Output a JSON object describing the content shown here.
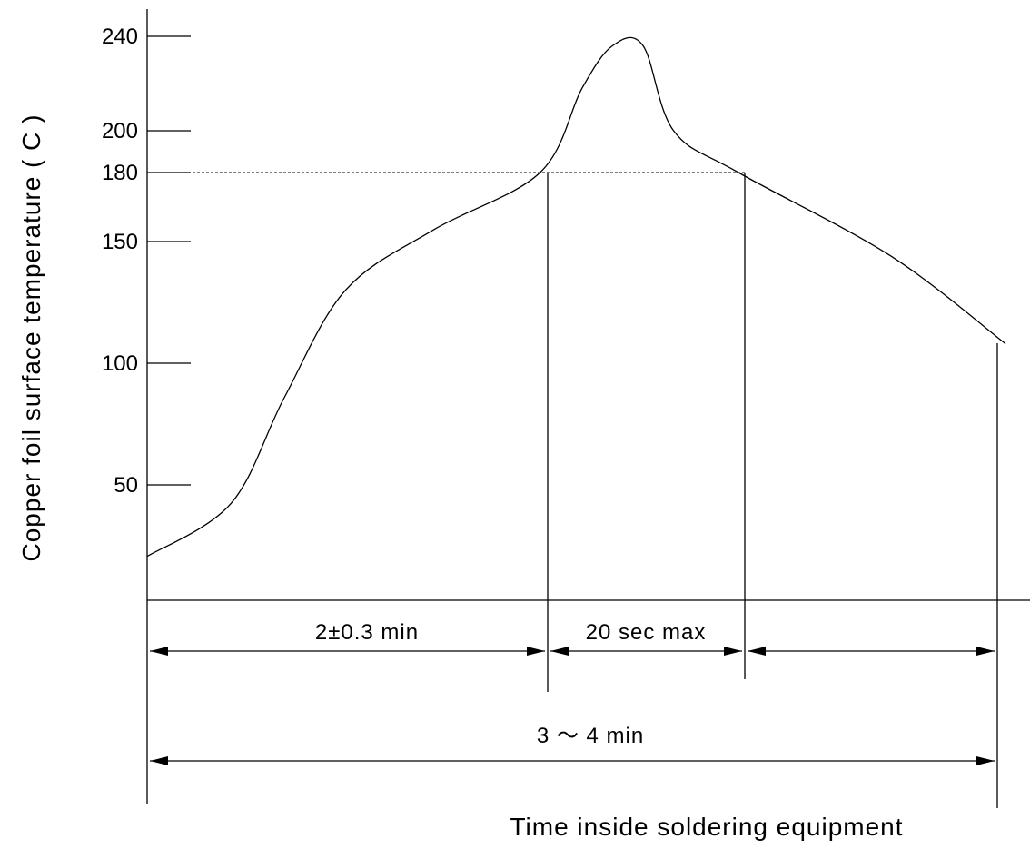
{
  "chart_data": {
    "type": "line",
    "title": "",
    "xlabel": "Time inside soldering equipment",
    "ylabel": "Copper foil surface temperature ( C )",
    "y_ticks": [
      50,
      100,
      150,
      180,
      200,
      240
    ],
    "y_tick_labels": [
      "50",
      "100",
      "150",
      "180",
      "200",
      "240"
    ],
    "threshold": 180,
    "grid": false,
    "series": [
      {
        "values": [
          {
            "t": 0,
            "y": 19
          },
          {
            "t": 22,
            "y": 42
          },
          {
            "t": 36,
            "y": 86
          },
          {
            "t": 52,
            "y": 130
          },
          {
            "t": 75,
            "y": 155
          },
          {
            "t": 103,
            "y": 180
          },
          {
            "t": 114,
            "y": 218
          },
          {
            "t": 122,
            "y": 236
          },
          {
            "t": 130,
            "y": 236
          },
          {
            "t": 138,
            "y": 200
          },
          {
            "t": 155,
            "y": 180
          },
          {
            "t": 195,
            "y": 144
          },
          {
            "t": 225,
            "y": 108
          }
        ]
      }
    ],
    "intervals": [
      {
        "label": "2±0.3 min"
      },
      {
        "label": "20 sec max"
      },
      {
        "label": ""
      }
    ],
    "total_interval": {
      "label": "3 ～ 4 min"
    }
  }
}
